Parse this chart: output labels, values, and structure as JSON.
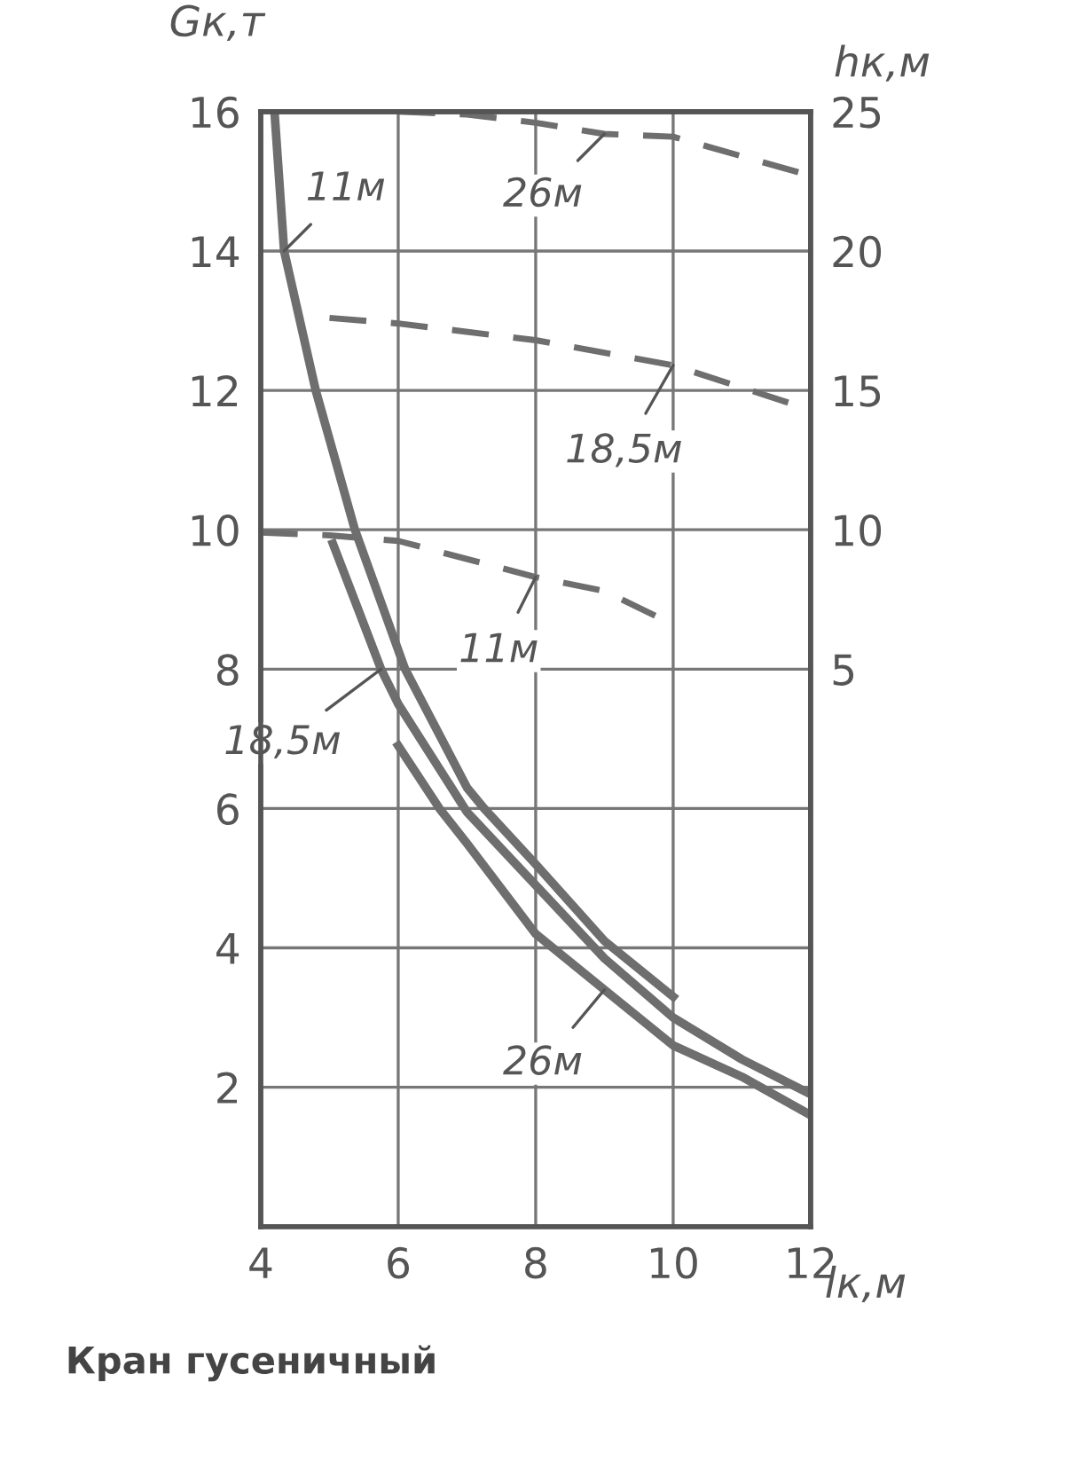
{
  "chart_data": {
    "type": "line",
    "xlabel": "lк,м",
    "ylabel": "Gк,т",
    "y2label": "hк,м",
    "annotations": [
      "Кран гусеничный"
    ],
    "xlim": [
      4,
      12
    ],
    "xticks": [
      4,
      6,
      8,
      10,
      12
    ],
    "ylim": [
      0,
      16
    ],
    "yticks": [
      2,
      4,
      6,
      8,
      10,
      12,
      14,
      16
    ],
    "y2lim": [
      -15,
      25
    ],
    "y2ticks": [
      5,
      10,
      15,
      20,
      25
    ],
    "grid": true,
    "legend": false,
    "marker": "none",
    "series": [
      {
        "name": "11м",
        "color": "#6e6e6e",
        "line_style": "solid",
        "x": [
          4.2,
          4.34,
          4.8,
          5.37,
          6.1,
          7,
          7.25,
          8,
          9,
          10
        ],
        "values": [
          16,
          14,
          12,
          10,
          8,
          6.3,
          6,
          5.2,
          4.1,
          3.3
        ]
      },
      {
        "name": "18,5м",
        "color": "#6e6e6e",
        "line_style": "solid",
        "x": [
          5.05,
          5.4,
          5.75,
          6,
          7,
          8,
          9,
          10,
          11,
          12
        ],
        "values": [
          9.8,
          8.9,
          8,
          7.5,
          5.95,
          4.9,
          3.85,
          3.0,
          2.4,
          1.9
        ]
      },
      {
        "name": "26м",
        "color": "#6e6e6e",
        "line_style": "solid",
        "x": [
          6,
          6.6,
          7,
          8,
          9,
          10,
          11,
          12
        ],
        "values": [
          6.9,
          6,
          5.5,
          4.2,
          3.4,
          2.6,
          2.15,
          1.6
        ]
      },
      {
        "name": "26м",
        "color": "#6e6e6e",
        "line_style": "dashed",
        "axis": "y2",
        "x": [
          6,
          7,
          8,
          9,
          10,
          11,
          12
        ],
        "values": [
          25,
          24.9,
          24.6,
          24.2,
          24.1,
          23.4,
          22.7
        ]
      },
      {
        "name": "18,5м",
        "color": "#6e6e6e",
        "line_style": "dashed",
        "axis": "y2",
        "x": [
          5,
          6,
          8,
          10,
          12
        ],
        "values": [
          17.6,
          17.4,
          16.8,
          15.9,
          14.3
        ]
      },
      {
        "name": "11м",
        "color": "#6e6e6e",
        "line_style": "dashed",
        "axis": "y2",
        "x": [
          4,
          5,
          6,
          8,
          9,
          10
        ],
        "values": [
          9.9,
          9.8,
          9.6,
          8.3,
          7.8,
          6.6
        ]
      }
    ]
  }
}
